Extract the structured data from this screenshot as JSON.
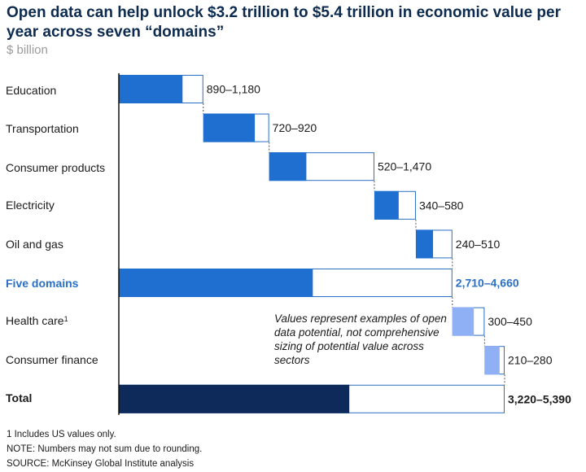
{
  "title": "Open data can help unlock $3.2 trillion to $5.4 trillion in economic value per year across seven “domains”",
  "unit": "$ billion",
  "note": "Values represent examples of open data potential, not comprehensive sizing of potential value across sectors",
  "footnotes": {
    "f1": "1  Includes US values only.",
    "note": "NOTE: Numbers may not sum due to rounding.",
    "source": "SOURCE: McKinsey Global Institute analysis"
  },
  "colors": {
    "domain_fill": "#1f6fd1",
    "health_fill": "#8fb0f5",
    "total_fill": "#0d2a5a",
    "outline": "#2a6fc6",
    "axis": "#111111",
    "highlight_text": "#2a6fc6"
  },
  "chart_data": {
    "type": "bar",
    "subtype": "waterfall-range",
    "unit": "$ billion",
    "categories": [
      {
        "label": "Education",
        "low": 890,
        "high": 1180,
        "range_label": "890–1,180",
        "style": "domain",
        "footnote_mark": ""
      },
      {
        "label": "Transportation",
        "low": 720,
        "high": 920,
        "range_label": "720–920",
        "style": "domain",
        "footnote_mark": ""
      },
      {
        "label": "Consumer products",
        "low": 520,
        "high": 1470,
        "range_label": "520–1,470",
        "style": "domain",
        "footnote_mark": ""
      },
      {
        "label": "Electricity",
        "low": 340,
        "high": 580,
        "range_label": "340–580",
        "style": "domain",
        "footnote_mark": ""
      },
      {
        "label": "Oil and gas",
        "low": 240,
        "high": 510,
        "range_label": "240–510",
        "style": "domain",
        "footnote_mark": ""
      },
      {
        "label": "Five domains",
        "low": 2710,
        "high": 4660,
        "range_label": "2,710–4,660",
        "style": "subtotal",
        "footnote_mark": ""
      },
      {
        "label": "Health care",
        "low": 300,
        "high": 450,
        "range_label": "300–450",
        "style": "light",
        "footnote_mark": "1"
      },
      {
        "label": "Consumer finance",
        "low": 210,
        "high": 280,
        "range_label": "210–280",
        "style": "light",
        "footnote_mark": ""
      },
      {
        "label": "Total",
        "low": 3220,
        "high": 5390,
        "range_label": "3,220–5,390",
        "style": "total",
        "footnote_mark": ""
      }
    ],
    "xlim": [
      0,
      5390
    ]
  }
}
